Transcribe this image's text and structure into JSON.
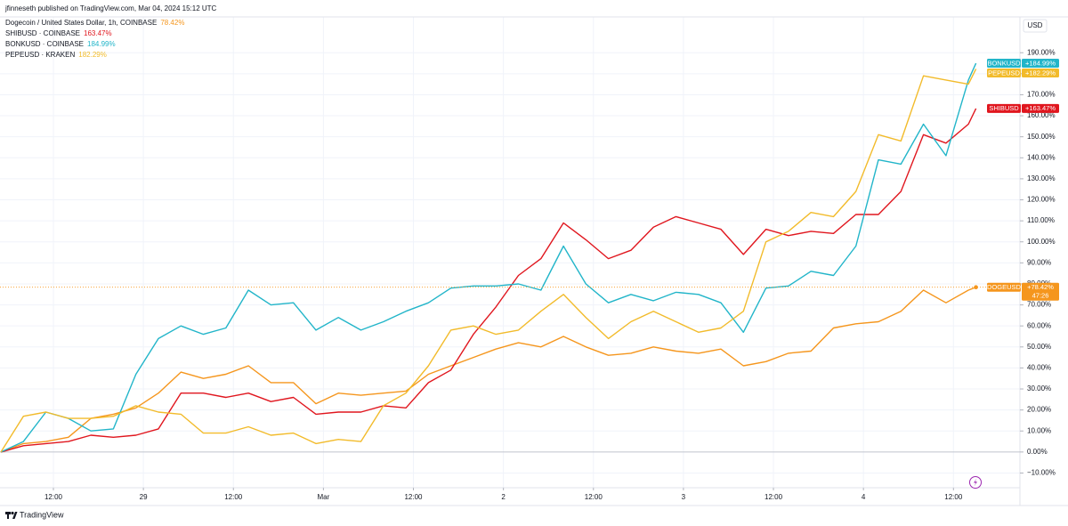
{
  "header": {
    "publisher": "jfinneseth published on TradingView.com, Mar 04, 2024 15:12 UTC",
    "currency": "USD",
    "brand": "TradingView"
  },
  "chart_data": {
    "type": "line",
    "title": "Dogecoin / United States Dollar, 1h, COINBASE",
    "x": [
      0,
      3,
      6,
      9,
      12,
      15,
      18,
      21,
      24,
      27,
      30,
      33,
      36,
      39,
      42,
      45,
      48,
      51,
      54,
      57,
      60,
      63,
      66,
      69,
      72,
      75,
      78,
      81,
      84,
      87,
      90,
      93,
      96,
      99,
      102,
      105,
      108,
      111,
      114,
      117,
      120,
      123,
      126,
      129,
      130
    ],
    "xlim": [
      0,
      131
    ],
    "xticks": [
      {
        "value": 7,
        "label": "12:00"
      },
      {
        "value": 19,
        "label": "29"
      },
      {
        "value": 31,
        "label": "12:00"
      },
      {
        "value": 43,
        "label": "Mar"
      },
      {
        "value": 55,
        "label": "12:00"
      },
      {
        "value": 67,
        "label": "2"
      },
      {
        "value": 79,
        "label": "12:00"
      },
      {
        "value": 91,
        "label": "3"
      },
      {
        "value": 103,
        "label": "12:00"
      },
      {
        "value": 115,
        "label": "4"
      },
      {
        "value": 127,
        "label": "12:00"
      }
    ],
    "ylim": [
      -17,
      210
    ],
    "yticks": [
      {
        "value": -10,
        "label": "−10.00%"
      },
      {
        "value": 0,
        "label": "0.00%"
      },
      {
        "value": 10,
        "label": "10.00%"
      },
      {
        "value": 20,
        "label": "20.00%"
      },
      {
        "value": 30,
        "label": "30.00%"
      },
      {
        "value": 40,
        "label": "40.00%"
      },
      {
        "value": 50,
        "label": "50.00%"
      },
      {
        "value": 60,
        "label": "60.00%"
      },
      {
        "value": 70,
        "label": "70.00%"
      },
      {
        "value": 80,
        "label": "80.00%"
      },
      {
        "value": 90,
        "label": "90.00%"
      },
      {
        "value": 100,
        "label": "100.00%"
      },
      {
        "value": 110,
        "label": "110.00%"
      },
      {
        "value": 120,
        "label": "120.00%"
      },
      {
        "value": 130,
        "label": "130.00%"
      },
      {
        "value": 140,
        "label": "140.00%"
      },
      {
        "value": 150,
        "label": "150.00%"
      },
      {
        "value": 160,
        "label": "160.00%"
      },
      {
        "value": 170,
        "label": "170.00%"
      },
      {
        "value": 180,
        "label": "180.00%"
      },
      {
        "value": 190,
        "label": "190.00%"
      }
    ],
    "grid": true,
    "series": [
      {
        "name": "Dogecoin / United States Dollar, 1h, COINBASE",
        "symbol": "DOGEUSD",
        "last_label": "78.42%",
        "tag_label": "+78.42%",
        "countdown": "47:26",
        "color": "#f5961d",
        "values": [
          0,
          4,
          5,
          7,
          16,
          18,
          21,
          28,
          38,
          35,
          37,
          41,
          33,
          33,
          23,
          28,
          27,
          28,
          29,
          37,
          41,
          45,
          49,
          52,
          50,
          55,
          50,
          46,
          47,
          50,
          48,
          47,
          49,
          41,
          43,
          47,
          48,
          59,
          61,
          62,
          67,
          77,
          71,
          77,
          78.42
        ]
      },
      {
        "name": "SHIBUSD · COINBASE",
        "symbol": "SHIBUSD",
        "last_label": "163.47%",
        "tag_label": "+163.47%",
        "color": "#e0161e",
        "values": [
          0,
          3,
          4,
          5,
          8,
          7,
          8,
          11,
          28,
          28,
          26,
          28,
          24,
          26,
          18,
          19,
          19,
          22,
          21,
          33,
          39,
          56,
          69,
          84,
          92,
          109,
          101,
          92,
          96,
          107,
          112,
          109,
          106,
          94,
          106,
          103,
          105,
          104,
          113,
          113,
          124,
          151,
          147,
          156,
          163.47
        ]
      },
      {
        "name": "BONKUSD · COINBASE",
        "symbol": "BONKUSD",
        "last_label": "184.99%",
        "tag_label": "+184.99%",
        "color": "#22b5c9",
        "values": [
          0,
          5,
          19,
          16,
          10,
          11,
          37,
          54,
          60,
          56,
          59,
          77,
          70,
          71,
          58,
          64,
          58,
          62,
          67,
          71,
          78,
          79,
          79,
          80,
          77,
          98,
          80,
          71,
          75,
          72,
          76,
          75,
          71,
          57,
          78,
          79,
          86,
          84,
          98,
          139,
          137,
          156,
          141,
          177,
          184.99
        ]
      },
      {
        "name": "PEPEUSD · KRAKEN",
        "symbol": "PEPEUSD",
        "last_label": "182.29%",
        "tag_label": "+182.29%",
        "color": "#f2bb2b",
        "values": [
          0,
          17,
          19,
          16,
          16,
          17,
          22,
          19,
          18,
          9,
          9,
          12,
          8,
          9,
          4,
          6,
          5,
          22,
          28,
          41,
          58,
          60,
          56,
          58,
          67,
          75,
          64,
          54,
          62,
          67,
          62,
          57,
          59,
          67,
          100,
          105,
          114,
          112,
          124,
          151,
          148,
          179,
          177,
          175,
          182.29
        ]
      }
    ]
  }
}
